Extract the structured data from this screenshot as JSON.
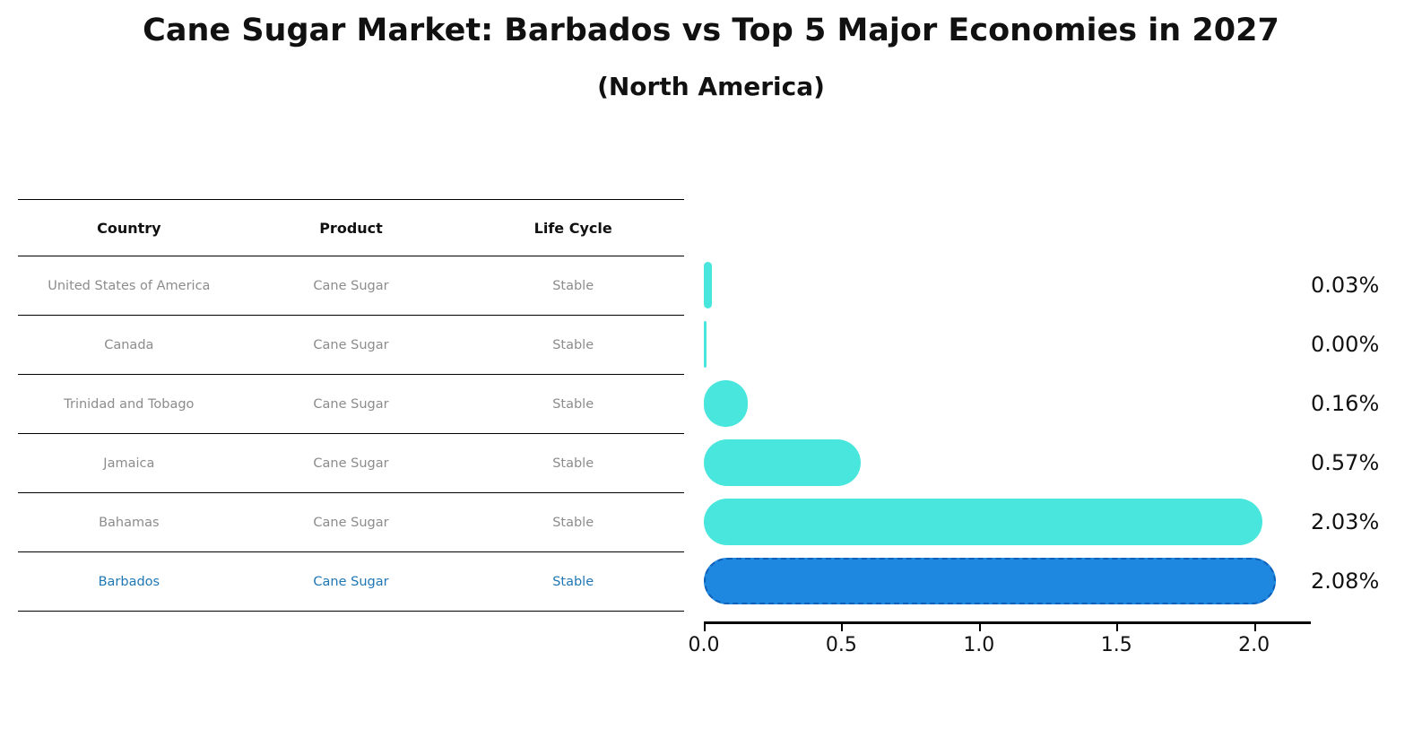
{
  "header": {
    "title": "Cane Sugar Market: Barbados vs Top 5 Major Economies in 2027",
    "subtitle": "(North America)"
  },
  "table": {
    "columns": [
      "Country",
      "Product",
      "Life Cycle"
    ],
    "rows": [
      {
        "country": "United States of America",
        "product": "Cane Sugar",
        "life_cycle": "Stable",
        "highlight": false
      },
      {
        "country": "Canada",
        "product": "Cane Sugar",
        "life_cycle": "Stable",
        "highlight": false
      },
      {
        "country": "Trinidad and Tobago",
        "product": "Cane Sugar",
        "life_cycle": "Stable",
        "highlight": false
      },
      {
        "country": "Jamaica",
        "product": "Cane Sugar",
        "life_cycle": "Stable",
        "highlight": false
      },
      {
        "country": "Bahamas",
        "product": "Cane Sugar",
        "life_cycle": "Stable",
        "highlight": false
      },
      {
        "country": "Barbados",
        "product": "Cane Sugar",
        "life_cycle": "Stable",
        "highlight": true
      }
    ],
    "highlight_text_color": "#1f77b4"
  },
  "chart_data": {
    "type": "bar",
    "orientation": "horizontal",
    "title": "Cane Sugar Market: Barbados vs Top 5 Major Economies in 2027",
    "subtitle": "(North America)",
    "categories": [
      "United States of America",
      "Canada",
      "Trinidad and Tobago",
      "Jamaica",
      "Bahamas",
      "Barbados"
    ],
    "values": [
      0.03,
      0.0,
      0.16,
      0.57,
      2.03,
      2.08
    ],
    "value_labels": [
      "0.03%",
      "0.00%",
      "0.16%",
      "0.57%",
      "2.03%",
      "2.08%"
    ],
    "unit": "%",
    "x_ticks": [
      0.0,
      0.5,
      1.0,
      1.5,
      2.0
    ],
    "x_tick_labels": [
      "0.0",
      "0.5",
      "1.0",
      "1.5",
      "2.0"
    ],
    "xlim": [
      0,
      2.2
    ],
    "xlabel": "",
    "ylabel": "",
    "grid": false,
    "legend": false,
    "bar_color": "#48E6DC",
    "highlight_bar_color": "#1E87E0",
    "highlight_border_color": "#0d5fb8",
    "highlight_index": 5
  }
}
